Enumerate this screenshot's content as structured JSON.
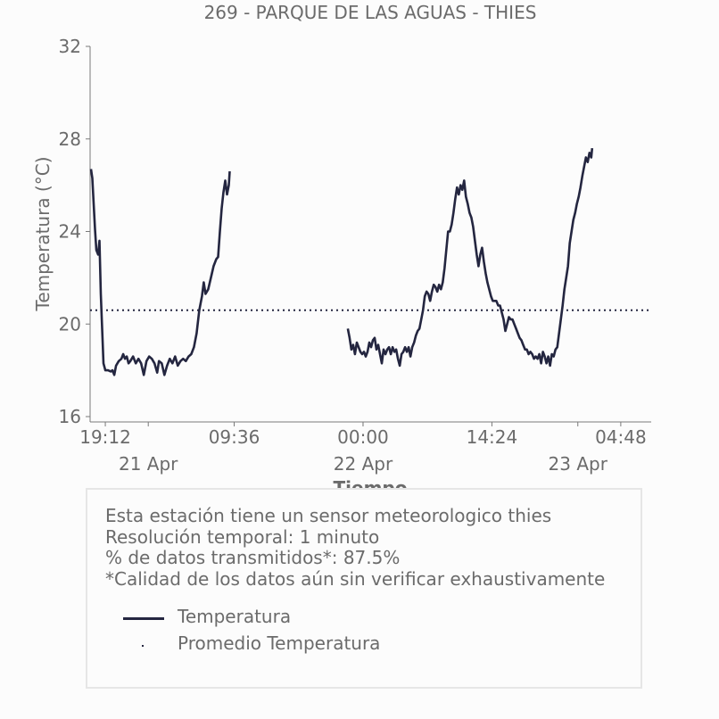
{
  "chart_data": {
    "type": "line",
    "title": "269 - PARQUE DE LAS AGUAS - THIES",
    "xlabel": "Tiempo",
    "ylabel": "Temperatura (°C)",
    "x_unit": "hours",
    "xlim": [
      17.5,
      80.2
    ],
    "ylim": [
      16,
      32
    ],
    "yticks": [
      16,
      20,
      24,
      28,
      32
    ],
    "xticks_time": [
      {
        "x": 19.2,
        "label": "19:12"
      },
      {
        "x": 33.6,
        "label": "09:36"
      },
      {
        "x": 48,
        "label": "00:00"
      },
      {
        "x": 62.4,
        "label": "14:24"
      },
      {
        "x": 76.8,
        "label": "04:48"
      }
    ],
    "xticks_date": [
      {
        "x": 24,
        "label": "21 Apr"
      },
      {
        "x": 48,
        "label": "22 Apr"
      },
      {
        "x": 72,
        "label": "23 Apr"
      }
    ],
    "average": 20.6,
    "series": [
      {
        "name": "Temperatura",
        "color": "#242640",
        "segments": [
          [
            [
              17.6,
              26.7
            ],
            [
              17.75,
              26.3
            ],
            [
              17.9,
              25.2
            ],
            [
              18.05,
              24.1
            ],
            [
              18.2,
              23.2
            ],
            [
              18.4,
              23.0
            ],
            [
              18.55,
              23.6
            ],
            [
              18.7,
              21.3
            ],
            [
              18.85,
              19.8
            ],
            [
              19.0,
              18.3
            ],
            [
              19.2,
              18.0
            ],
            [
              19.5,
              18.0
            ],
            [
              19.8,
              17.95
            ],
            [
              20.0,
              18.0
            ],
            [
              20.2,
              17.8
            ],
            [
              20.4,
              18.2
            ],
            [
              20.7,
              18.4
            ],
            [
              21.0,
              18.5
            ],
            [
              21.2,
              18.7
            ],
            [
              21.4,
              18.5
            ],
            [
              21.6,
              18.6
            ],
            [
              21.8,
              18.3
            ],
            [
              22.0,
              18.4
            ],
            [
              22.3,
              18.6
            ],
            [
              22.6,
              18.3
            ],
            [
              22.9,
              18.5
            ],
            [
              23.2,
              18.3
            ],
            [
              23.5,
              17.8
            ],
            [
              23.8,
              18.4
            ],
            [
              24.1,
              18.6
            ],
            [
              24.4,
              18.5
            ],
            [
              24.7,
              18.3
            ],
            [
              25.0,
              17.9
            ],
            [
              25.2,
              18.4
            ],
            [
              25.5,
              18.3
            ],
            [
              25.8,
              17.8
            ],
            [
              26.1,
              18.2
            ],
            [
              26.4,
              18.5
            ],
            [
              26.7,
              18.3
            ],
            [
              27.0,
              18.6
            ],
            [
              27.3,
              18.2
            ],
            [
              27.6,
              18.4
            ],
            [
              27.9,
              18.5
            ],
            [
              28.2,
              18.4
            ],
            [
              28.5,
              18.6
            ],
            [
              28.8,
              18.7
            ],
            [
              29.1,
              19.0
            ],
            [
              29.4,
              19.6
            ],
            [
              29.7,
              20.6
            ],
            [
              30.0,
              21.2
            ],
            [
              30.2,
              21.8
            ],
            [
              30.4,
              21.3
            ],
            [
              30.7,
              21.5
            ],
            [
              31.0,
              22.0
            ],
            [
              31.3,
              22.5
            ],
            [
              31.6,
              22.8
            ],
            [
              31.8,
              22.9
            ],
            [
              32.0,
              24.0
            ],
            [
              32.2,
              25.0
            ],
            [
              32.4,
              25.7
            ],
            [
              32.6,
              26.2
            ],
            [
              32.8,
              25.6
            ],
            [
              33.0,
              26.0
            ],
            [
              33.1,
              26.6
            ]
          ],
          [
            [
              46.3,
              19.8
            ],
            [
              46.5,
              19.4
            ],
            [
              46.7,
              18.9
            ],
            [
              46.9,
              19.1
            ],
            [
              47.1,
              18.7
            ],
            [
              47.3,
              19.2
            ],
            [
              47.5,
              19.0
            ],
            [
              47.7,
              18.8
            ],
            [
              47.9,
              18.7
            ],
            [
              48.1,
              18.8
            ],
            [
              48.3,
              18.6
            ],
            [
              48.5,
              18.8
            ],
            [
              48.7,
              19.2
            ],
            [
              48.9,
              19.0
            ],
            [
              49.1,
              19.3
            ],
            [
              49.3,
              19.4
            ],
            [
              49.5,
              18.9
            ],
            [
              49.7,
              19.1
            ],
            [
              49.9,
              18.7
            ],
            [
              50.1,
              18.3
            ],
            [
              50.3,
              18.9
            ],
            [
              50.5,
              18.7
            ],
            [
              50.7,
              18.9
            ],
            [
              50.9,
              19.0
            ],
            [
              51.1,
              18.7
            ],
            [
              51.3,
              19.0
            ],
            [
              51.5,
              18.8
            ],
            [
              51.7,
              18.9
            ],
            [
              51.9,
              18.5
            ],
            [
              52.1,
              18.2
            ],
            [
              52.3,
              18.7
            ],
            [
              52.5,
              18.8
            ],
            [
              52.7,
              19.0
            ],
            [
              52.9,
              18.8
            ],
            [
              53.1,
              19.0
            ],
            [
              53.3,
              18.6
            ],
            [
              53.5,
              19.0
            ],
            [
              53.7,
              19.2
            ],
            [
              53.9,
              19.5
            ],
            [
              54.1,
              19.7
            ],
            [
              54.3,
              19.8
            ],
            [
              54.5,
              20.2
            ],
            [
              54.7,
              20.6
            ],
            [
              54.9,
              21.2
            ],
            [
              55.1,
              21.4
            ],
            [
              55.3,
              21.3
            ],
            [
              55.5,
              21.0
            ],
            [
              55.7,
              21.4
            ],
            [
              55.9,
              21.7
            ],
            [
              56.1,
              21.6
            ],
            [
              56.3,
              21.4
            ],
            [
              56.5,
              21.7
            ],
            [
              56.7,
              21.5
            ],
            [
              56.9,
              21.8
            ],
            [
              57.1,
              22.4
            ],
            [
              57.3,
              23.2
            ],
            [
              57.5,
              24.0
            ],
            [
              57.7,
              24.0
            ],
            [
              57.9,
              24.3
            ],
            [
              58.1,
              24.8
            ],
            [
              58.3,
              25.4
            ],
            [
              58.5,
              25.9
            ],
            [
              58.7,
              25.6
            ],
            [
              58.9,
              26.0
            ],
            [
              59.1,
              25.8
            ],
            [
              59.3,
              26.2
            ],
            [
              59.5,
              25.5
            ],
            [
              59.7,
              25.2
            ],
            [
              59.9,
              24.8
            ],
            [
              60.1,
              24.6
            ],
            [
              60.3,
              24.2
            ],
            [
              60.5,
              23.6
            ],
            [
              60.7,
              23.0
            ],
            [
              60.9,
              22.5
            ],
            [
              61.1,
              23.0
            ],
            [
              61.3,
              23.3
            ],
            [
              61.5,
              22.7
            ],
            [
              61.7,
              22.2
            ],
            [
              61.9,
              21.8
            ],
            [
              62.1,
              21.5
            ],
            [
              62.3,
              21.2
            ],
            [
              62.5,
              21.0
            ],
            [
              62.7,
              21.0
            ],
            [
              62.9,
              21.0
            ],
            [
              63.1,
              20.8
            ],
            [
              63.3,
              20.8
            ],
            [
              63.5,
              20.5
            ],
            [
              63.7,
              20.2
            ],
            [
              63.9,
              19.7
            ],
            [
              64.1,
              20.0
            ],
            [
              64.3,
              20.3
            ],
            [
              64.5,
              20.2
            ],
            [
              64.7,
              20.2
            ],
            [
              64.9,
              20.0
            ],
            [
              65.1,
              19.8
            ],
            [
              65.3,
              19.6
            ],
            [
              65.5,
              19.4
            ],
            [
              65.7,
              19.3
            ],
            [
              65.9,
              19.1
            ],
            [
              66.1,
              18.9
            ],
            [
              66.3,
              18.9
            ],
            [
              66.5,
              18.7
            ],
            [
              66.7,
              18.8
            ],
            [
              66.9,
              18.7
            ],
            [
              67.1,
              18.5
            ],
            [
              67.3,
              18.6
            ],
            [
              67.5,
              18.5
            ],
            [
              67.7,
              18.7
            ],
            [
              67.9,
              18.3
            ],
            [
              68.1,
              18.8
            ],
            [
              68.3,
              18.6
            ],
            [
              68.5,
              18.3
            ],
            [
              68.7,
              18.6
            ],
            [
              68.9,
              18.2
            ],
            [
              69.1,
              18.7
            ],
            [
              69.3,
              18.6
            ],
            [
              69.5,
              18.9
            ],
            [
              69.7,
              19.0
            ],
            [
              69.9,
              19.6
            ],
            [
              70.1,
              20.2
            ],
            [
              70.3,
              20.8
            ],
            [
              70.5,
              21.5
            ],
            [
              70.7,
              22.0
            ],
            [
              70.9,
              22.5
            ],
            [
              71.1,
              23.5
            ],
            [
              71.3,
              24.0
            ],
            [
              71.5,
              24.5
            ],
            [
              71.7,
              24.8
            ],
            [
              71.9,
              25.2
            ],
            [
              72.1,
              25.5
            ],
            [
              72.3,
              25.9
            ],
            [
              72.5,
              26.4
            ],
            [
              72.7,
              26.8
            ],
            [
              72.9,
              27.2
            ],
            [
              73.1,
              27.0
            ],
            [
              73.3,
              27.4
            ],
            [
              73.5,
              27.2
            ],
            [
              73.6,
              27.6
            ]
          ]
        ]
      },
      {
        "name": "Promedio Temperatura",
        "color": "#242640",
        "style": "dotted",
        "values": [
          20.6
        ]
      }
    ],
    "grid": false,
    "legend": "bottom"
  },
  "info": {
    "line1": "Esta estación tiene un sensor meteorologico thies",
    "line2": "Resolución temporal: 1 minuto",
    "line3": "% de datos transmitidos*: 87.5%",
    "line4": "*Calidad de los datos aún sin verificar exhaustivamente"
  },
  "legend": {
    "temp_label": "Temperatura",
    "avg_label": "Promedio Temperatura"
  }
}
